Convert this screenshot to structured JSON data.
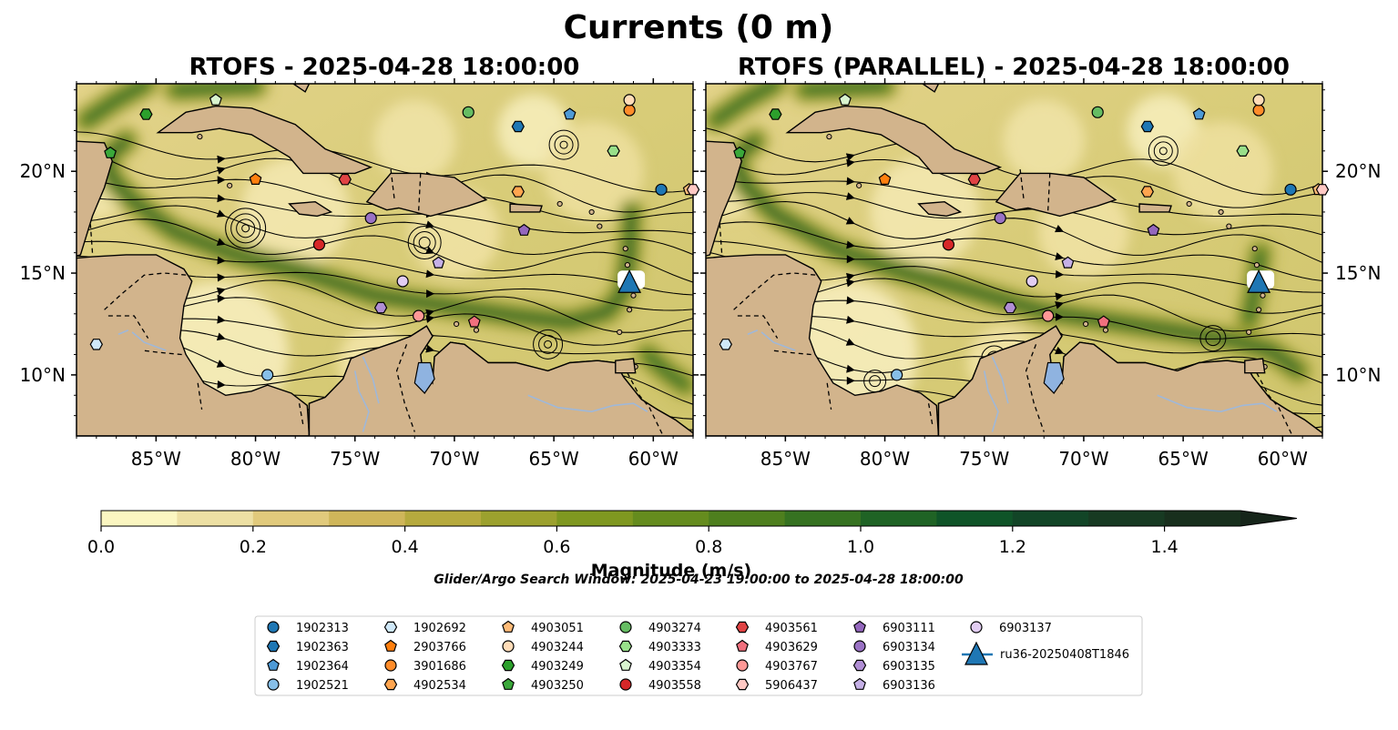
{
  "figure": {
    "title": "Currents (0 m)",
    "panel_titles": [
      "RTOFS - 2025-04-28 18:00:00",
      "RTOFS (PARALLEL) - 2025-04-28 18:00:00"
    ],
    "search_window": "Glider/Argo Search Window: 2025-04-23 19:00:00 to 2025-04-28 18:00:00"
  },
  "chart_data": {
    "type": "heatmap",
    "map_extent": {
      "lon": [
        -89,
        -58
      ],
      "lat": [
        7,
        24.3
      ]
    },
    "x_ticks": [
      "85°W",
      "80°W",
      "75°W",
      "70°W",
      "65°W",
      "60°W"
    ],
    "x_tick_values": [
      -85,
      -80,
      -75,
      -70,
      -65,
      -60
    ],
    "y_ticks": [
      "20°N",
      "15°N",
      "10°N"
    ],
    "y_tick_values": [
      20,
      15,
      10
    ],
    "colorbar": {
      "label": "Magnitude (m/s)",
      "min": 0.0,
      "max": 1.5,
      "extend": "max",
      "ticks": [
        "0.0",
        "0.2",
        "0.4",
        "0.6",
        "0.8",
        "1.0",
        "1.2",
        "1.4"
      ],
      "tick_values": [
        0.0,
        0.2,
        0.4,
        0.6,
        0.8,
        1.0,
        1.2,
        1.4
      ],
      "colors": [
        "#fbf6c1",
        "#ede0a4",
        "#e1ca7c",
        "#cfb65a",
        "#b6aa3e",
        "#9ca12e",
        "#7f9820",
        "#658c1e",
        "#4e7f1e",
        "#367221",
        "#1f6325",
        "#0f5428",
        "#124527",
        "#173a22",
        "#182f1d",
        "#16251a"
      ]
    },
    "floats": [
      {
        "id": "1902313",
        "marker": "circle",
        "color": "#1f77b4",
        "lon": -59.6,
        "lat": 19.1
      },
      {
        "id": "1902363",
        "marker": "hexagon",
        "color": "#1f77b4",
        "lon": -66.8,
        "lat": 22.2
      },
      {
        "id": "1902364",
        "marker": "pentagon",
        "color": "#4e9ad6",
        "lon": -64.2,
        "lat": 22.8
      },
      {
        "id": "1902521",
        "marker": "circle",
        "color": "#87bfe8",
        "lon": -79.4,
        "lat": 10.0
      },
      {
        "id": "1902692",
        "marker": "hexagon",
        "color": "#cfe8f8",
        "lon": -88.0,
        "lat": 11.5
      },
      {
        "id": "2903766",
        "marker": "pentagon",
        "color": "#ff7f0e",
        "lon": -80.0,
        "lat": 19.6
      },
      {
        "id": "3901686",
        "marker": "circle",
        "color": "#ff8c2a",
        "lon": -61.2,
        "lat": 23.0
      },
      {
        "id": "4902534",
        "marker": "hexagon",
        "color": "#ffa54f",
        "lon": -66.8,
        "lat": 19.0
      },
      {
        "id": "4903051",
        "marker": "pentagon",
        "color": "#ffbb78",
        "lon": -58.2,
        "lat": 19.1
      },
      {
        "id": "4903244",
        "marker": "circle",
        "color": "#ffdcb8",
        "lon": -61.2,
        "lat": 23.5
      },
      {
        "id": "4903249",
        "marker": "hexagon",
        "color": "#2ca02c",
        "lon": -85.5,
        "lat": 22.8
      },
      {
        "id": "4903250",
        "marker": "pentagon",
        "color": "#3aa83a",
        "lon": -87.3,
        "lat": 20.9
      },
      {
        "id": "4903274",
        "marker": "circle",
        "color": "#66bd63",
        "lon": -69.3,
        "lat": 22.9
      },
      {
        "id": "4903333",
        "marker": "hexagon",
        "color": "#98df8a",
        "lon": -62.0,
        "lat": 21.0
      },
      {
        "id": "4903354",
        "marker": "pentagon",
        "color": "#d9f5cf",
        "lon": -82.0,
        "lat": 23.5
      },
      {
        "id": "4903558",
        "marker": "circle",
        "color": "#d62728",
        "lon": -76.8,
        "lat": 16.4
      },
      {
        "id": "4903561",
        "marker": "hexagon",
        "color": "#e04344",
        "lon": -75.5,
        "lat": 19.6
      },
      {
        "id": "4903629",
        "marker": "pentagon",
        "color": "#f0707e",
        "lon": -69.0,
        "lat": 12.6
      },
      {
        "id": "4903767",
        "marker": "circle",
        "color": "#ff9896",
        "lon": -71.8,
        "lat": 12.9
      },
      {
        "id": "5906437",
        "marker": "hexagon",
        "color": "#ffc9c4",
        "lon": -58.0,
        "lat": 19.1
      },
      {
        "id": "6903111",
        "marker": "pentagon",
        "color": "#9467bd",
        "lon": -66.5,
        "lat": 17.1
      },
      {
        "id": "6903134",
        "marker": "circle",
        "color": "#9a72c4",
        "lon": -74.2,
        "lat": 17.7
      },
      {
        "id": "6903135",
        "marker": "hexagon",
        "color": "#b08ed4",
        "lon": -73.7,
        "lat": 13.3
      },
      {
        "id": "6903136",
        "marker": "pentagon",
        "color": "#c5b0e6",
        "lon": -70.8,
        "lat": 15.5
      },
      {
        "id": "6903137",
        "marker": "circle",
        "color": "#e2cdf2",
        "lon": -72.6,
        "lat": 14.6
      }
    ],
    "glider": {
      "id": "ru36-20250408T1846",
      "marker": "triangle",
      "color": "#1f77b4",
      "lon": -61.2,
      "lat": 14.5
    },
    "legend": {
      "placement": "bottom-center",
      "columns": 7,
      "entries": [
        "1902313",
        "1902363",
        "1902364",
        "1902521",
        "1902692",
        "2903766",
        "3901686",
        "4902534",
        "4903051",
        "4903244",
        "4903249",
        "4903250",
        "4903274",
        "4903333",
        "4903354",
        "4903558",
        "4903561",
        "4903629",
        "4903767",
        "5906437",
        "6903111",
        "6903134",
        "6903135",
        "6903136",
        "6903137",
        "ru36-20250408T1846"
      ]
    }
  }
}
